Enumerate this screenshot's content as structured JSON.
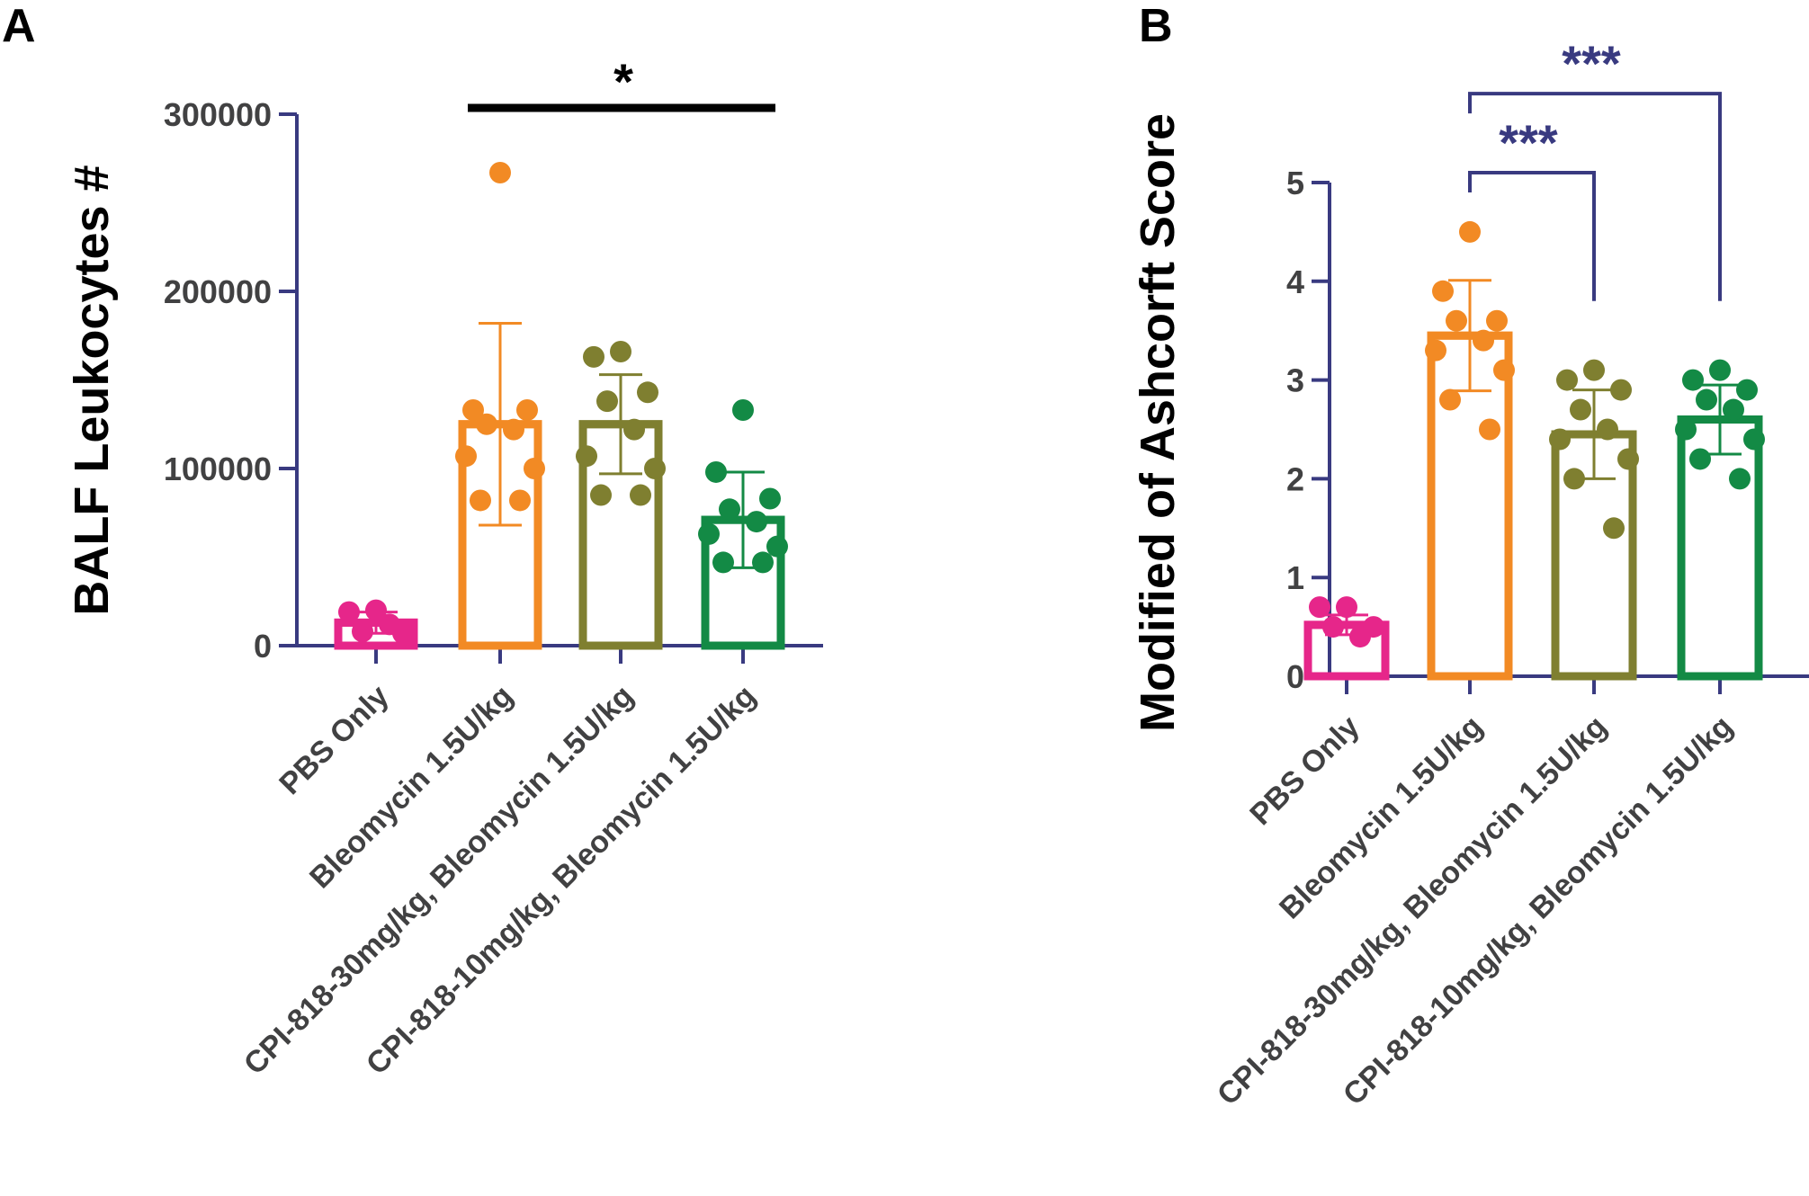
{
  "chart_data": [
    {
      "panel_label": "A",
      "type": "bar",
      "ylabel": "BALF Leukocytes #",
      "ylim": [
        0,
        300000
      ],
      "yticks": [
        0,
        100000,
        200000,
        300000
      ],
      "categories": [
        "PBS Only",
        "Bleomycin 1.5U/kg",
        "CPI-818-30mg/kg, Bleomycin 1.5U/kg",
        "CPI-818-10mg/kg, Bleomycin 1.5U/kg"
      ],
      "colors": [
        "#e6268a",
        "#f28a24",
        "#7f7f30",
        "#138a45"
      ],
      "means": [
        13000,
        125000,
        125000,
        71000
      ],
      "sd": [
        6000,
        57000,
        28000,
        27000
      ],
      "points": [
        [
          20000,
          19000,
          7000,
          8000,
          12000
        ],
        [
          267000,
          133000,
          133000,
          125000,
          122000,
          107000,
          100000,
          82000,
          82000
        ],
        [
          166000,
          163000,
          143000,
          138000,
          122000,
          107000,
          100000,
          85000,
          85000
        ],
        [
          133000,
          98000,
          83000,
          77000,
          70000,
          63000,
          56000,
          47000,
          47000
        ]
      ],
      "significance": [
        {
          "from": 1,
          "to": 3,
          "label": "*",
          "value": 308000,
          "style": "line"
        }
      ]
    },
    {
      "panel_label": "B",
      "type": "bar",
      "ylabel": "Modified of Ashcorft Score",
      "ylim": [
        0,
        5
      ],
      "yticks": [
        0,
        1,
        2,
        3,
        4,
        5
      ],
      "categories": [
        "PBS Only",
        "Bleomycin 1.5U/kg",
        "CPI-818-30mg/kg, Bleomycin 1.5U/kg",
        "CPI-818-10mg/kg, Bleomycin 1.5U/kg"
      ],
      "colors": [
        "#e6268a",
        "#f28a24",
        "#7f7f30",
        "#138a45"
      ],
      "means": [
        0.52,
        3.45,
        2.45,
        2.6
      ],
      "sd": [
        0.1,
        0.56,
        0.45,
        0.35
      ],
      "points": [
        [
          0.7,
          0.7,
          0.5,
          0.5,
          0.4
        ],
        [
          4.5,
          3.9,
          3.6,
          3.6,
          3.4,
          3.3,
          3.1,
          2.8,
          2.5
        ],
        [
          3.1,
          3.0,
          2.9,
          2.7,
          2.5,
          2.4,
          2.2,
          2.0,
          1.5
        ],
        [
          3.1,
          3.0,
          2.9,
          2.8,
          2.7,
          2.5,
          2.4,
          2.2,
          2.0
        ]
      ],
      "significance": [
        {
          "from": 1,
          "to": 2,
          "label": "***",
          "value": 5.1,
          "drop_to": 3.8,
          "style": "bracket"
        },
        {
          "from": 1,
          "to": 3,
          "label": "***",
          "value": 5.9,
          "drop_to": 3.8,
          "style": "bracket"
        }
      ]
    }
  ]
}
